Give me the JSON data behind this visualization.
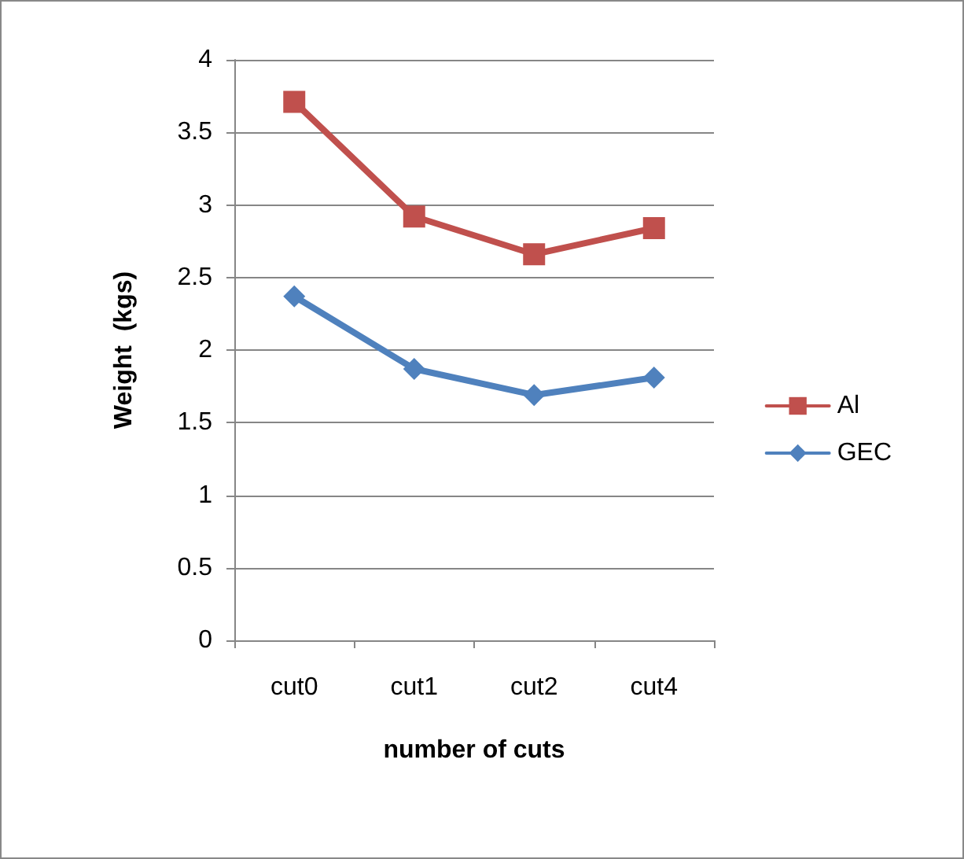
{
  "chart_data": {
    "type": "line",
    "xlabel": "number of cuts",
    "ylabel": "Weight  (kgs)",
    "categories": [
      "cut0",
      "cut1",
      "cut2",
      "cut4"
    ],
    "series": [
      {
        "name": "Al",
        "color": "#c0504d",
        "marker": "square",
        "values": [
          3.71,
          2.92,
          2.66,
          2.84
        ]
      },
      {
        "name": "GEC",
        "color": "#4f81bd",
        "marker": "diamond",
        "values": [
          2.37,
          1.87,
          1.69,
          1.81
        ]
      }
    ],
    "ylim": [
      0,
      4
    ],
    "yticks": [
      0,
      0.5,
      1,
      1.5,
      2,
      2.5,
      3,
      3.5,
      4
    ],
    "grid": "y",
    "legend": "right",
    "line_style": "solid"
  }
}
